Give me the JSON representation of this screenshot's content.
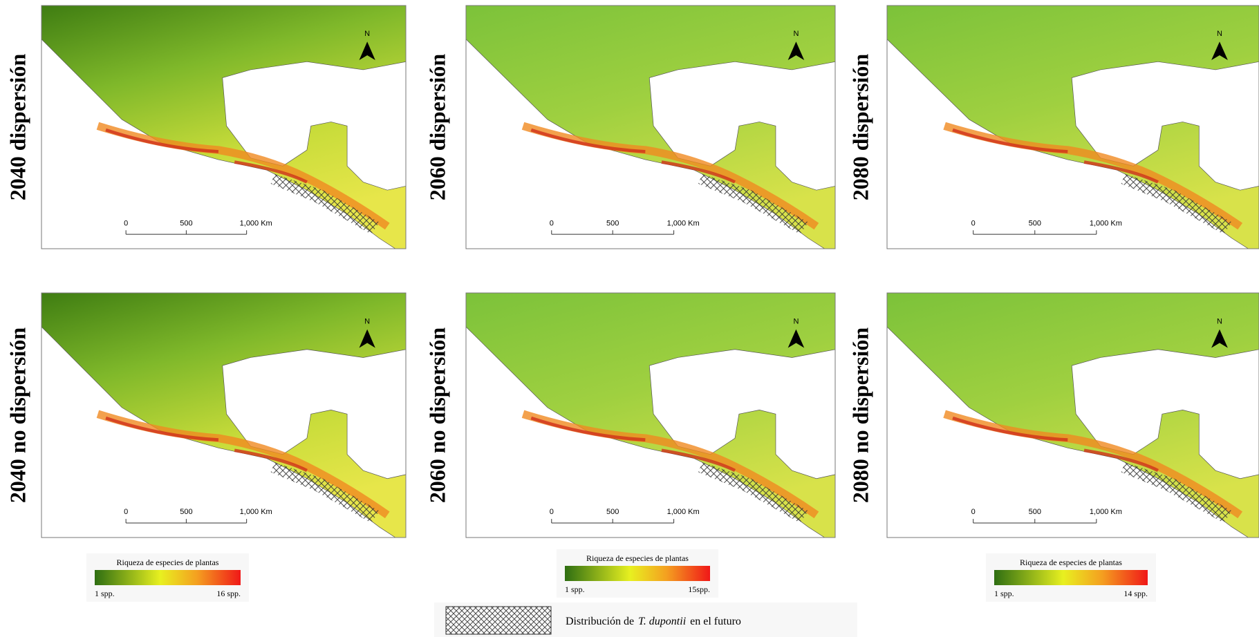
{
  "panels": [
    {
      "label": "2040 dispersión",
      "north": "N",
      "scale_labels": [
        "0",
        "500",
        "1,000 Km"
      ]
    },
    {
      "label": "2060 dispersión",
      "north": "N",
      "scale_labels": [
        "0",
        "500",
        "1,000 Km"
      ]
    },
    {
      "label": "2080 dispersión",
      "north": "N",
      "scale_labels": [
        "0",
        "500",
        "1,000 Km"
      ]
    },
    {
      "label": "2040 no dispersión",
      "north": "N",
      "scale_labels": [
        "0",
        "500",
        "1,000 Km"
      ]
    },
    {
      "label": "2060 no dispersión",
      "north": "N",
      "scale_labels": [
        "0",
        "500",
        "1,000 Km"
      ]
    },
    {
      "label": "2080 no dispersión",
      "north": "N",
      "scale_labels": [
        "0",
        "500",
        "1,000 Km"
      ]
    }
  ],
  "legends": [
    {
      "title": "Riqueza de especies de plantas",
      "min": "1 spp.",
      "max": "16 spp."
    },
    {
      "title": "Riqueza de especies de plantas",
      "min": "1 spp.",
      "max": "15spp."
    },
    {
      "title": "Riqueza de especies de plantas",
      "min": "1 spp.",
      "max": "14 spp."
    }
  ],
  "footer": {
    "text_before": "Distribución de",
    "species": "T. dupontii",
    "text_after": "en el futuro"
  }
}
